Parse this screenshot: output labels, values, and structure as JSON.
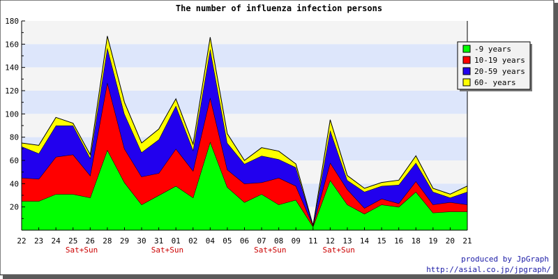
{
  "chart_data": {
    "type": "area",
    "stacked": true,
    "title": "The number of influenza infection persons",
    "xlabel": "",
    "ylabel": "",
    "ylim": [
      0,
      180
    ],
    "yticks": [
      20,
      40,
      60,
      80,
      100,
      120,
      140,
      160,
      180
    ],
    "grid": true,
    "legend_position": "right",
    "categories": [
      "22",
      "23",
      "24",
      "25",
      "26",
      "28",
      "29",
      "30",
      "31",
      "01",
      "02",
      "04",
      "05",
      "06",
      "07",
      "08",
      "09",
      "11",
      "12",
      "13",
      "14",
      "15",
      "16",
      "18",
      "19",
      "20",
      "21"
    ],
    "weekend_markers": [
      {
        "after": "25",
        "label": "Sat+Sun"
      },
      {
        "after": "31",
        "label": "Sat+Sun"
      },
      {
        "after": "07",
        "label": "Sat+Sun"
      },
      {
        "after": "12",
        "label": "Sat+Sun"
      }
    ],
    "series": [
      {
        "name": "-9 years",
        "color": "#00ff00",
        "values": [
          25,
          25,
          31,
          31,
          28,
          69,
          41,
          22,
          30,
          38,
          28,
          76,
          37,
          24,
          31,
          22,
          26,
          3,
          43,
          22,
          14,
          22,
          20,
          33,
          15,
          16,
          16
        ]
      },
      {
        "name": "10-19 years",
        "color": "#ff0000",
        "values": [
          20,
          19,
          32,
          34,
          19,
          58,
          29,
          24,
          19,
          32,
          23,
          38,
          15,
          16,
          10,
          23,
          12,
          1,
          15,
          13,
          5,
          5,
          3,
          9,
          7,
          8,
          6
        ]
      },
      {
        "name": "20-59 years",
        "color": "#2200ee",
        "values": [
          27,
          22,
          27,
          25,
          15,
          30,
          30,
          21,
          29,
          37,
          18,
          42,
          23,
          17,
          23,
          16,
          16,
          0,
          28,
          8,
          14,
          11,
          16,
          16,
          11,
          4,
          11
        ]
      },
      {
        "name": "60- years",
        "color": "#ffff00",
        "values": [
          3,
          7,
          7,
          2,
          3,
          10,
          10,
          8,
          9,
          6,
          5,
          10,
          8,
          3,
          7,
          7,
          3,
          0,
          9,
          4,
          3,
          3,
          4,
          6,
          3,
          3,
          5
        ]
      }
    ]
  },
  "credit": {
    "line1": "produced by JpGraph",
    "line2": "http://asial.co.jp/jpgraph/"
  }
}
